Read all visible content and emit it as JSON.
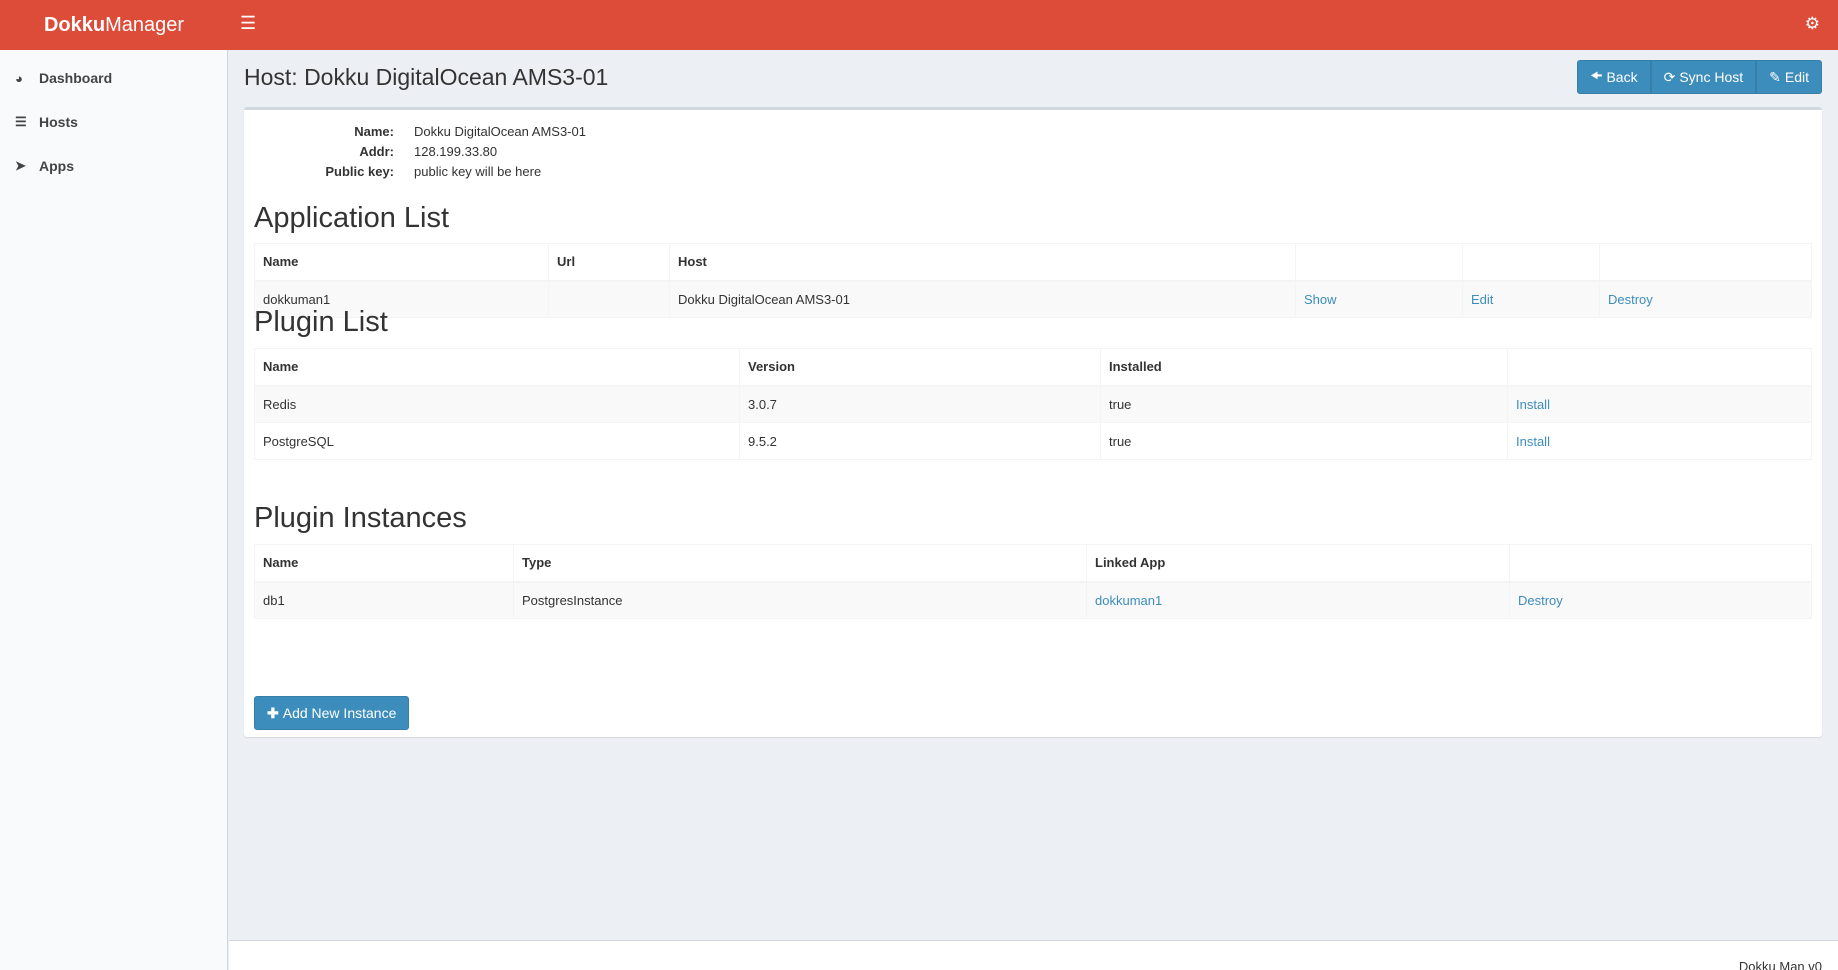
{
  "header": {
    "logo_bold": "Dokku",
    "logo_rest": "Manager"
  },
  "sidebar": {
    "items": [
      {
        "label": "Dashboard",
        "icon": "dashboard-icon"
      },
      {
        "label": "Hosts",
        "icon": "server-icon"
      },
      {
        "label": "Apps",
        "icon": "rocket-icon"
      }
    ]
  },
  "page": {
    "title": "Host: Dokku DigitalOcean AMS3-01",
    "buttons": {
      "back": "Back",
      "sync": "Sync Host",
      "edit": "Edit"
    }
  },
  "info": [
    {
      "k": "Name:",
      "v": "Dokku DigitalOcean AMS3-01"
    },
    {
      "k": "Addr:",
      "v": "128.199.33.80"
    },
    {
      "k": "Public key:",
      "v": "public key will be here"
    }
  ],
  "apps": {
    "heading": "Application List",
    "columns": [
      "Name",
      "Url",
      "Host",
      "",
      "",
      ""
    ],
    "rows": [
      {
        "name": "dokkuman1",
        "url": "",
        "host": "Dokku DigitalOcean AMS3-01",
        "show": "Show",
        "edit": "Edit",
        "destroy": "Destroy"
      }
    ]
  },
  "plugins": {
    "heading": "Plugin List",
    "columns": [
      "Name",
      "Version",
      "Installed",
      ""
    ],
    "rows": [
      {
        "name": "Redis",
        "version": "3.0.7",
        "installed": "true",
        "action": "Install"
      },
      {
        "name": "PostgreSQL",
        "version": "9.5.2",
        "installed": "true",
        "action": "Install"
      }
    ]
  },
  "instances": {
    "heading": "Plugin Instances",
    "columns": [
      "Name",
      "Type",
      "Linked App",
      ""
    ],
    "rows": [
      {
        "name": "db1",
        "type": "PostgresInstance",
        "app": "dokkuman1",
        "action": "Destroy"
      }
    ],
    "add_label": "Add New Instance"
  },
  "footer": {
    "text": "Dokku Man v0"
  },
  "colors": {
    "header": "#dd4b39",
    "primary": "#3c8dbc"
  }
}
